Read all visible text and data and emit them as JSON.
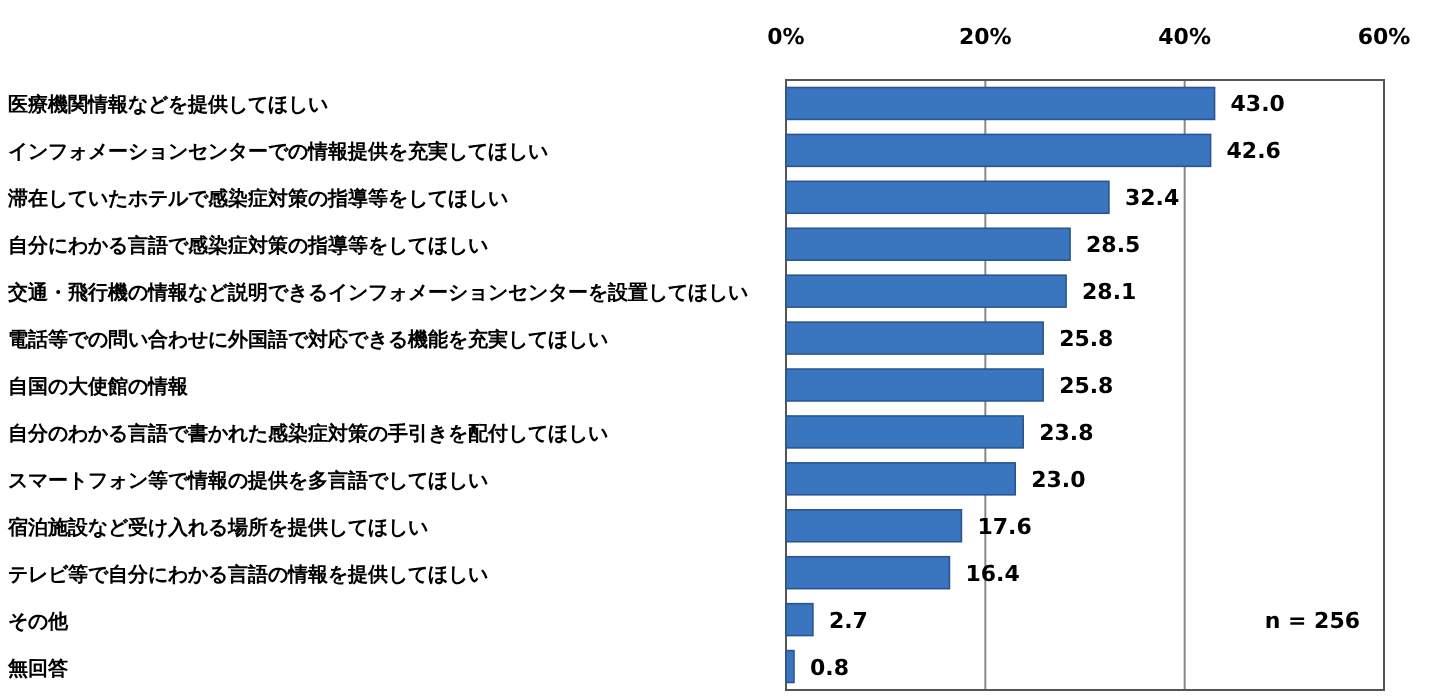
{
  "chart_data": {
    "type": "bar",
    "orientation": "horizontal",
    "categories": [
      "医療機関情報などを提供してほしい",
      "インフォメーションセンターでの情報提供を充実してほしい",
      "滞在していたホテルで感染症対策の指導等をしてほしい",
      "自分にわかる言語で感染症対策の指導等をしてほしい",
      "交通・飛行機の情報など説明できるインフォメーションセンターを設置してほしい",
      "電話等での問い合わせに外国語で対応できる機能を充実してほしい",
      "自国の大使館の情報",
      "自分のわかる言語で書かれた感染症対策の手引きを配付してほしい",
      "スマートフォン等で情報の提供を多言語でしてほしい",
      "宿泊施設など受け入れる場所を提供してほしい",
      "テレビ等で自分にわかる言語の情報を提供してほしい",
      "その他",
      "無回答"
    ],
    "values": [
      43.0,
      42.6,
      32.4,
      28.5,
      28.1,
      25.8,
      25.8,
      23.8,
      23.0,
      17.6,
      16.4,
      2.7,
      0.8
    ],
    "value_labels": [
      "43.0",
      "42.6",
      "32.4",
      "28.5",
      "28.1",
      "25.8",
      "25.8",
      "23.8",
      "23.0",
      "17.6",
      "16.4",
      "2.7",
      "0.8"
    ],
    "color": "#3a75c0",
    "xlim": [
      0,
      60
    ],
    "xticks": [
      {
        "value": 0,
        "label": "0%"
      },
      {
        "value": 20,
        "label": "20%"
      },
      {
        "value": 40,
        "label": "40%"
      },
      {
        "value": 60,
        "label": "60%"
      }
    ],
    "grid": "x",
    "annotations": [
      "n = 256"
    ]
  }
}
